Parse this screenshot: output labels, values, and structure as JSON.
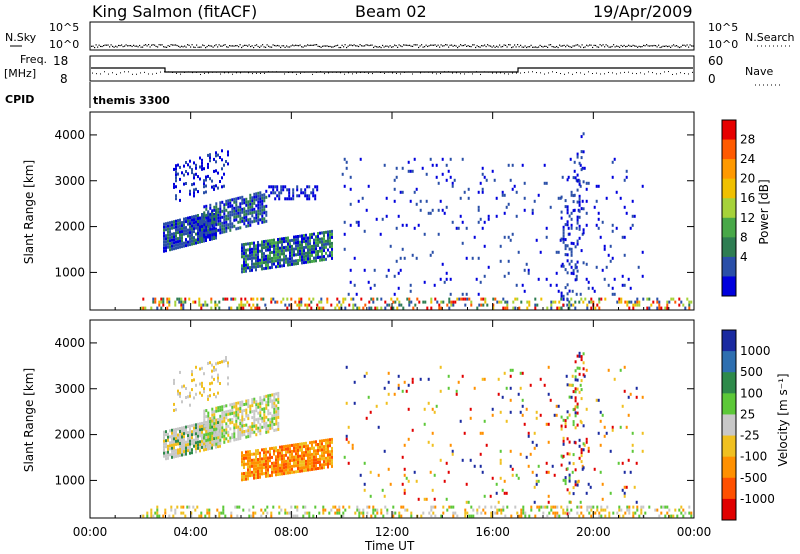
{
  "header": {
    "station": "King Salmon (fitACF)",
    "beam": "Beam 02",
    "date": "19/Apr/2009"
  },
  "top_panels": {
    "nsky_label": "N.Sky",
    "nsky_ticks": [
      "10^5",
      "10^0"
    ],
    "nsearch_label": "N.Search",
    "nsearch_ticks": [
      "10^5",
      "10^0"
    ],
    "freq_label": "Freq.",
    "freq_unit": "[MHz]",
    "freq_ticks": [
      "18",
      "8"
    ],
    "nave_label": "Nave",
    "nave_ticks": [
      "60",
      "0"
    ],
    "cpid_label": "CPID",
    "cpid_value": "themis 3300"
  },
  "chart_data": [
    {
      "type": "heatmap",
      "name": "power",
      "ylabel": "Slant Range [km]",
      "ylim": [
        180,
        4500
      ],
      "yticks": [
        1000,
        2000,
        3000,
        4000
      ],
      "xlim": [
        0,
        24
      ],
      "colorbar": {
        "label": "Power [dB]",
        "ticks": [
          "28",
          "24",
          "20",
          "16",
          "12",
          "8",
          "4"
        ],
        "colors": [
          "#e60000",
          "#ff5a00",
          "#ff9900",
          "#f0c000",
          "#a6d23a",
          "#48a848",
          "#2e7d52",
          "#2a4fa8",
          "#0000dd"
        ]
      },
      "regions": [
        {
          "t0": 2.9,
          "t1": 5.0,
          "r0": 1600,
          "r1": 2200,
          "density": 0.9,
          "colors": [
            "#2a4fa8",
            "#2a4fa8",
            "#2e7d52",
            "#0000dd"
          ]
        },
        {
          "t0": 4.5,
          "t1": 7.0,
          "r0": 1900,
          "r1": 2600,
          "density": 0.75,
          "colors": [
            "#2a4fa8",
            "#2e7d52",
            "#0000dd"
          ]
        },
        {
          "t0": 6.0,
          "t1": 9.6,
          "r0": 1150,
          "r1": 1750,
          "density": 0.85,
          "colors": [
            "#2a4fa8",
            "#2e7d52",
            "#48a848",
            "#0000dd"
          ]
        },
        {
          "t0": 3.3,
          "t1": 5.5,
          "r0": 2700,
          "r1": 3500,
          "density": 0.25,
          "colors": [
            "#2a4fa8",
            "#0000dd"
          ]
        },
        {
          "t0": 7.0,
          "t1": 9.0,
          "r0": 2600,
          "r1": 2900,
          "density": 0.45,
          "colors": [
            "#2a4fa8",
            "#0000dd"
          ]
        },
        {
          "t0": 10.0,
          "t1": 22.0,
          "r0": 500,
          "r1": 3500,
          "density": 0.04,
          "colors": [
            "#2a4fa8",
            "#0000dd"
          ]
        },
        {
          "t0": 18.7,
          "t1": 19.6,
          "r0": 400,
          "r1": 3300,
          "density": 0.2,
          "colors": [
            "#2a4fa8",
            "#0000dd"
          ]
        },
        {
          "t0": 2.0,
          "t1": 24.0,
          "r0": 180,
          "r1": 450,
          "density": 0.3,
          "colors": [
            "#2a4fa8",
            "#2e7d52",
            "#a6d23a",
            "#f0c000",
            "#ff5a00",
            "#e60000"
          ]
        }
      ]
    },
    {
      "type": "heatmap",
      "name": "velocity",
      "ylabel": "Slant Range [km]",
      "ylim": [
        180,
        4500
      ],
      "yticks": [
        1000,
        2000,
        3000,
        4000
      ],
      "xlim": [
        0,
        24
      ],
      "xlabel": "Time UT",
      "xticks": [
        "00:00",
        "04:00",
        "08:00",
        "12:00",
        "16:00",
        "20:00",
        "00:00"
      ],
      "colorbar": {
        "label": "Velocity [m s⁻¹]",
        "ticks": [
          "1000",
          "500",
          "100",
          "25",
          "-25",
          "-100",
          "-500",
          "-1000"
        ],
        "colors": [
          "#1a2aa0",
          "#2e6fb0",
          "#2e8a4a",
          "#5cc838",
          "#c8c8c8",
          "#f0c020",
          "#ff9000",
          "#ff5000",
          "#e00000"
        ]
      },
      "regions": [
        {
          "t0": 2.9,
          "t1": 5.2,
          "r0": 1600,
          "r1": 2200,
          "density": 0.9,
          "colors": [
            "#c8c8c8",
            "#c8c8c8",
            "#c8c8c8",
            "#f0c020",
            "#2e8a4a"
          ]
        },
        {
          "t0": 4.5,
          "t1": 7.5,
          "r0": 1900,
          "r1": 2700,
          "density": 0.7,
          "colors": [
            "#c8c8c8",
            "#c8c8c8",
            "#f0c020",
            "#5cc838"
          ]
        },
        {
          "t0": 6.0,
          "t1": 9.6,
          "r0": 1150,
          "r1": 1750,
          "density": 0.85,
          "colors": [
            "#ff9000",
            "#f0c020",
            "#ff9000",
            "#ff5000"
          ]
        },
        {
          "t0": 3.3,
          "t1": 5.5,
          "r0": 2700,
          "r1": 3500,
          "density": 0.2,
          "colors": [
            "#c8c8c8",
            "#f0c020"
          ]
        },
        {
          "t0": 10.0,
          "t1": 22.0,
          "r0": 500,
          "r1": 3500,
          "density": 0.035,
          "colors": [
            "#f0c020",
            "#ff9000",
            "#5cc838",
            "#1a2aa0",
            "#e00000"
          ]
        },
        {
          "t0": 18.7,
          "t1": 19.6,
          "r0": 400,
          "r1": 3300,
          "density": 0.2,
          "colors": [
            "#e00000",
            "#f0c020",
            "#5cc838",
            "#1a2aa0"
          ]
        },
        {
          "t0": 2.0,
          "t1": 24.0,
          "r0": 180,
          "r1": 450,
          "density": 0.3,
          "colors": [
            "#c8c8c8",
            "#f0c020",
            "#ff9000",
            "#5cc838"
          ]
        }
      ]
    }
  ]
}
